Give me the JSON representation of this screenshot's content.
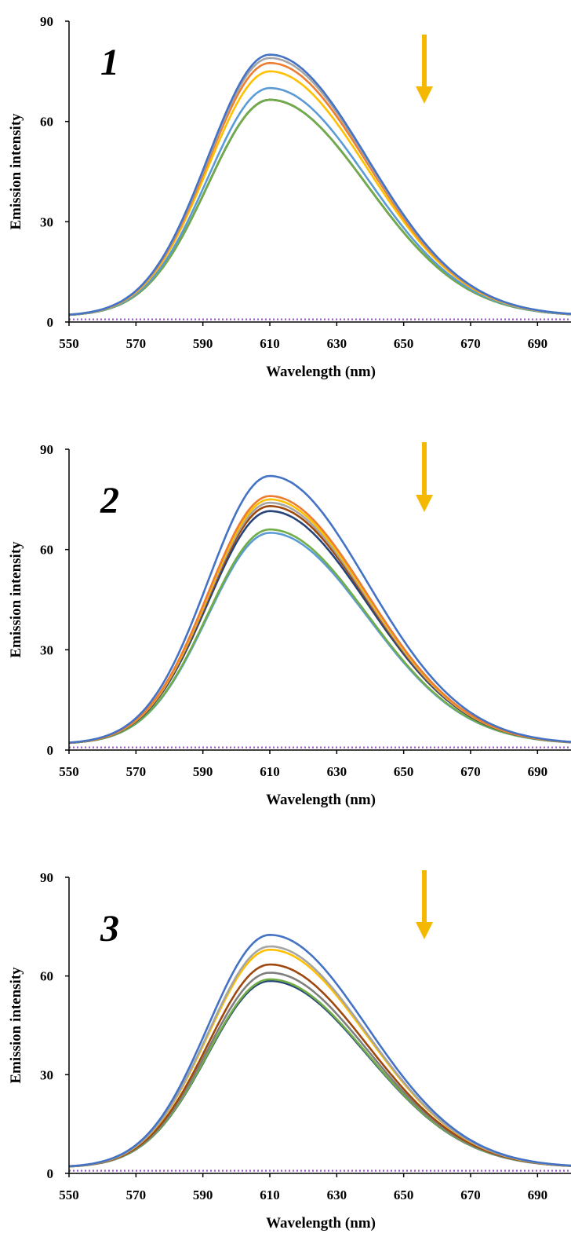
{
  "figure": {
    "arrow_color": "#F5B800",
    "dotted_color": "#9B59D0"
  },
  "chart_data": [
    {
      "type": "line",
      "panel_label": "1",
      "xlabel": "Wavelength (nm)",
      "ylabel": "Emission intensity",
      "xlim": [
        550,
        700
      ],
      "ylim": [
        0,
        90
      ],
      "xticks": [
        "550",
        "570",
        "590",
        "610",
        "630",
        "650",
        "670",
        "690"
      ],
      "yticks": [
        "0",
        "30",
        "60",
        "90"
      ],
      "grid": false,
      "legend": "none",
      "series": [
        {
          "color": "#4472C4",
          "peak": 80.0
        },
        {
          "color": "#A5A5A5",
          "peak": 79.0
        },
        {
          "color": "#ED7D31",
          "peak": 77.5
        },
        {
          "color": "#FFC000",
          "peak": 75.0
        },
        {
          "color": "#5B9BD5",
          "peak": 70.0
        },
        {
          "color": "#70AD47",
          "peak": 66.5
        },
        {
          "color": "#264478",
          "peak": 66.5
        },
        {
          "color": "#9E480E",
          "peak": 66.5
        }
      ],
      "baseline": {
        "value": 0.8,
        "style": "dotted"
      }
    },
    {
      "type": "line",
      "panel_label": "2",
      "xlabel": "Wavelength (nm)",
      "ylabel": "Emission intensity",
      "xlim": [
        550,
        700
      ],
      "ylim": [
        0,
        90
      ],
      "xticks": [
        "550",
        "570",
        "590",
        "610",
        "630",
        "650",
        "670",
        "690"
      ],
      "yticks": [
        "0",
        "30",
        "60",
        "90"
      ],
      "grid": false,
      "legend": "none",
      "series": [
        {
          "color": "#4472C4",
          "peak": 82.0
        },
        {
          "color": "#ED7D31",
          "peak": 76.0
        },
        {
          "color": "#FFC000",
          "peak": 75.0
        },
        {
          "color": "#A5A5A5",
          "peak": 74.0
        },
        {
          "color": "#9E480E",
          "peak": 73.0
        },
        {
          "color": "#264478",
          "peak": 71.5
        },
        {
          "color": "#70AD47",
          "peak": 66.0
        },
        {
          "color": "#5B9BD5",
          "peak": 65.0
        }
      ],
      "baseline": {
        "value": 0.8,
        "style": "dotted"
      }
    },
    {
      "type": "line",
      "panel_label": "3",
      "xlabel": "Wavelength (nm)",
      "ylabel": "Emission intensity",
      "xlim": [
        550,
        700
      ],
      "ylim": [
        0,
        90
      ],
      "xticks": [
        "550",
        "570",
        "590",
        "610",
        "630",
        "650",
        "670",
        "690"
      ],
      "yticks": [
        "0",
        "30",
        "60",
        "90"
      ],
      "grid": false,
      "legend": "none",
      "series": [
        {
          "color": "#4472C4",
          "peak": 72.5
        },
        {
          "color": "#A5A5A5",
          "peak": 69.0
        },
        {
          "color": "#FFC000",
          "peak": 68.0
        },
        {
          "color": "#9E480E",
          "peak": 63.5
        },
        {
          "color": "#7F7F7F",
          "peak": 61.0
        },
        {
          "color": "#70AD47",
          "peak": 59.0
        },
        {
          "color": "#264478",
          "peak": 58.5
        }
      ],
      "baseline": {
        "value": 0.8,
        "style": "dotted"
      }
    }
  ]
}
